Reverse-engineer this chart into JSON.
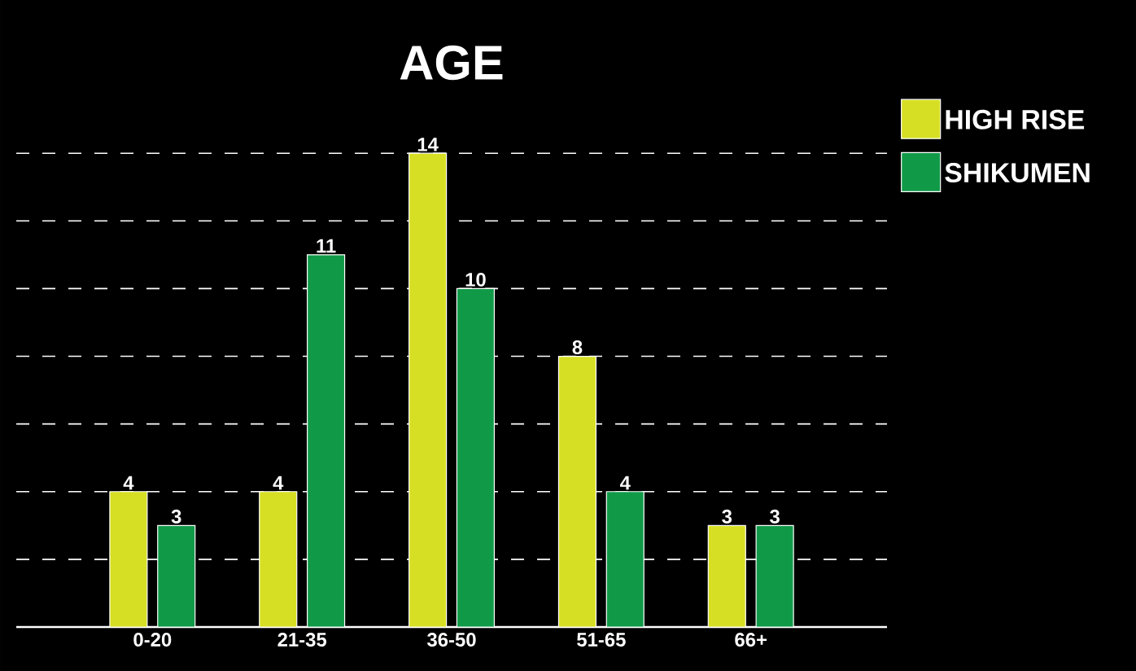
{
  "chart_data": {
    "type": "bar",
    "title": "AGE",
    "categories": [
      "0-20",
      "21-35",
      "36-50",
      "51-65",
      "66+"
    ],
    "series": [
      {
        "name": "HIGH RISE",
        "color": "#d6df23",
        "values": [
          4,
          4,
          14,
          8,
          3
        ]
      },
      {
        "name": "SHIKUMEN",
        "color": "#109a48",
        "values": [
          3,
          11,
          10,
          4,
          3
        ]
      }
    ],
    "tick_labels": "x",
    "grid": "y",
    "legend": "top right",
    "data_labels": true
  }
}
